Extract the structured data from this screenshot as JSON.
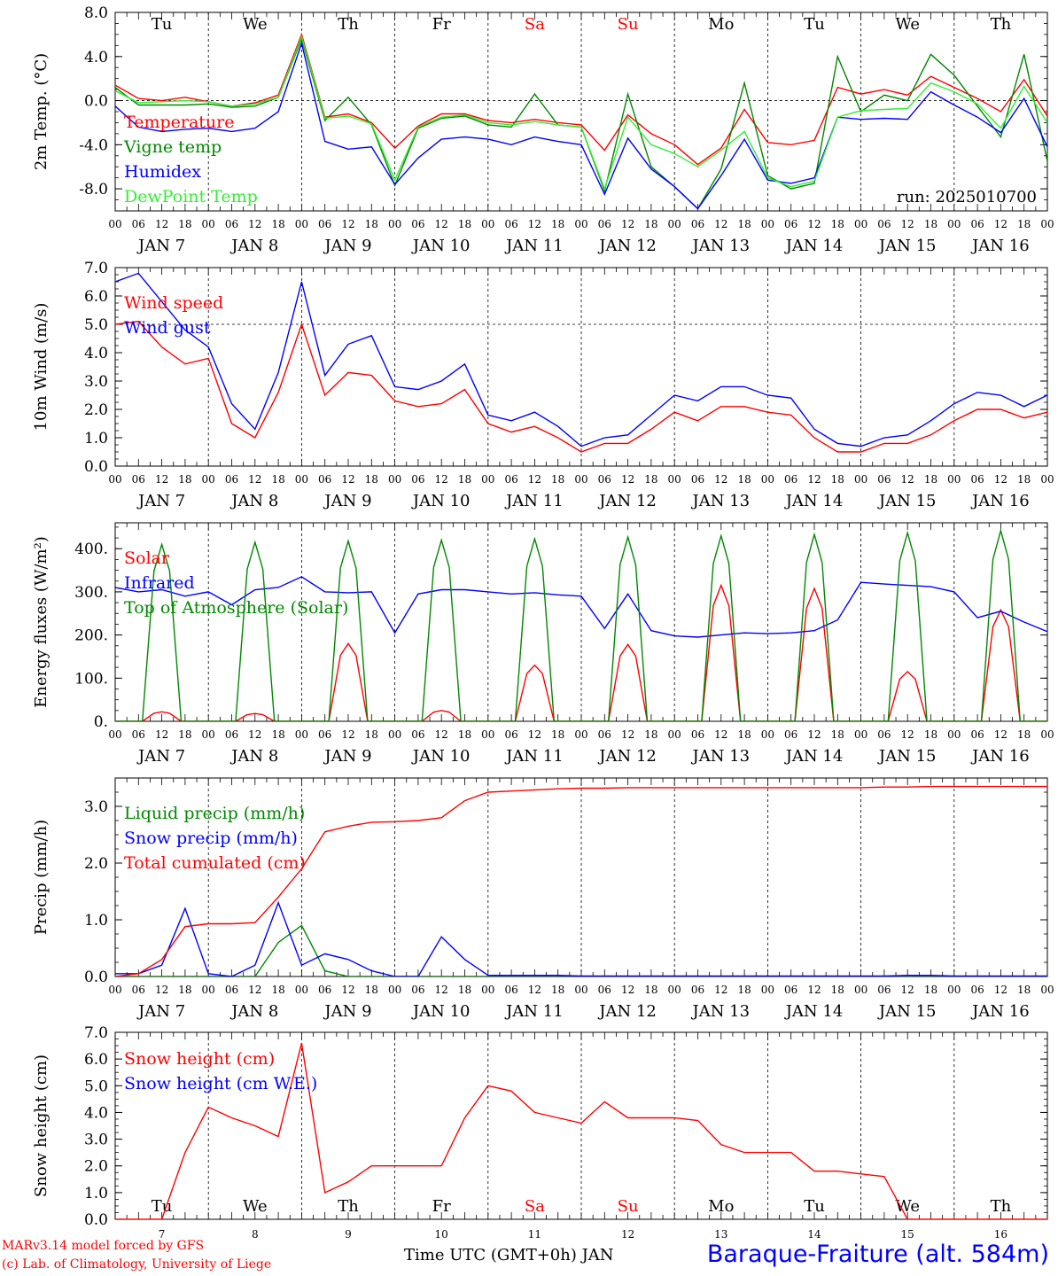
{
  "footer": {
    "credit_line1": "MARv3.14 model forced by GFS",
    "credit_line2": "(c) Lab. of Climatology, University of Liege",
    "xlabel": "Time UTC (GMT+0h) JAN",
    "station": "Baraque-Fraiture (alt. 584m)"
  },
  "colors": {
    "red": "#ff0000",
    "green": "#008800",
    "blue": "#0000ff",
    "light_green": "#33ee33"
  },
  "chart_data": [
    {
      "type": "line",
      "ylabel": "2m Temp. (°C)",
      "ylim": [
        -10,
        8
      ],
      "yticks": [
        "8.0",
        "4.0",
        "0.0",
        "-4.0",
        "-8.0"
      ],
      "ytick_values": [
        8,
        4,
        0,
        -4,
        -8
      ],
      "reference_line": 0,
      "annotation": "run: 2025010700",
      "day_names": [
        "Tu",
        "We",
        "Th",
        "Fr",
        "Sa",
        "Su",
        "Mo",
        "Tu",
        "We",
        "Th"
      ],
      "weekend_days": [
        4,
        5
      ],
      "x_hours": [
        0,
        6,
        12,
        18,
        24,
        30,
        36,
        42,
        48,
        54,
        60,
        66,
        72,
        78,
        84,
        90,
        96,
        102,
        108,
        114,
        120,
        126,
        132,
        138,
        144,
        150,
        156,
        162,
        168,
        174,
        180,
        186,
        192,
        198,
        204,
        210,
        216,
        222,
        228,
        234,
        240
      ],
      "series": [
        {
          "name": "Temperature",
          "color": "#ff0000",
          "values": [
            1.4,
            0.2,
            0.0,
            0.3,
            -0.1,
            -0.5,
            -0.2,
            0.5,
            6.0,
            -1.5,
            -1.2,
            -2.0,
            -4.3,
            -2.3,
            -1.2,
            -1.2,
            -1.8,
            -2.0,
            -1.7,
            -2.0,
            -2.2,
            -4.5,
            -1.3,
            -3.0,
            -4.0,
            -5.8,
            -4.3,
            -0.8,
            -3.8,
            -4.0,
            -3.6,
            1.2,
            0.6,
            1.0,
            0.5,
            2.2,
            1.2,
            0.2,
            -1.0,
            1.9,
            -1.4
          ]
        },
        {
          "name": "Vigne temp",
          "color": "#008800",
          "values": [
            1.2,
            -0.4,
            -0.4,
            -0.4,
            -0.3,
            -0.6,
            -0.5,
            0.3,
            5.6,
            -1.8,
            0.3,
            -2.2,
            -7.7,
            -2.5,
            -1.6,
            -1.4,
            -2.2,
            -2.4,
            0.6,
            -2.2,
            -2.4,
            -8.2,
            0.6,
            -6.0,
            -7.8,
            -9.8,
            -6.2,
            1.6,
            -6.8,
            -8.0,
            -7.5,
            4.0,
            -1.0,
            0.5,
            0.0,
            4.2,
            2.3,
            -0.5,
            -3.3,
            4.2,
            -5.5
          ]
        },
        {
          "name": "Humidex",
          "color": "#0000ff",
          "values": [
            -0.5,
            -2.4,
            -2.8,
            -2.6,
            -2.5,
            -2.8,
            -2.5,
            -1.0,
            5.2,
            -3.7,
            -4.4,
            -4.2,
            -7.6,
            -5.2,
            -3.5,
            -3.3,
            -3.5,
            -4.0,
            -3.3,
            -3.7,
            -4.0,
            -8.5,
            -3.4,
            -6.2,
            -7.8,
            -9.8,
            -6.8,
            -3.5,
            -7.2,
            -7.5,
            -7.0,
            -1.5,
            -1.7,
            -1.6,
            -1.7,
            0.8,
            -0.4,
            -1.5,
            -2.9,
            0.2,
            -4.2
          ]
        },
        {
          "name": "DewPoint Temp",
          "color": "#33ee33",
          "values": [
            0.9,
            -0.2,
            -0.1,
            0.0,
            -0.1,
            -0.5,
            -0.3,
            0.3,
            5.8,
            -1.6,
            -1.4,
            -2.1,
            -7.2,
            -2.4,
            -1.5,
            -1.3,
            -2.0,
            -2.2,
            -1.9,
            -2.2,
            -2.4,
            -8.0,
            -1.5,
            -4.0,
            -4.8,
            -6.0,
            -4.5,
            -2.8,
            -7.0,
            -7.8,
            -7.3,
            -1.5,
            -0.9,
            -0.8,
            -0.7,
            1.6,
            0.8,
            -0.3,
            -2.5,
            1.3,
            -2.0
          ]
        }
      ]
    },
    {
      "type": "line",
      "ylabel": "10m Wind (m/s)",
      "ylim": [
        0,
        7
      ],
      "yticks": [
        "7.0",
        "6.0",
        "5.0",
        "4.0",
        "3.0",
        "2.0",
        "1.0",
        "0.0"
      ],
      "ytick_values": [
        7,
        6,
        5,
        4,
        3,
        2,
        1,
        0
      ],
      "reference_line": 5,
      "x_hours": [
        0,
        6,
        12,
        18,
        24,
        30,
        36,
        42,
        48,
        54,
        60,
        66,
        72,
        78,
        84,
        90,
        96,
        102,
        108,
        114,
        120,
        126,
        132,
        138,
        144,
        150,
        156,
        162,
        168,
        174,
        180,
        186,
        192,
        198,
        204,
        210,
        216,
        222,
        228,
        234,
        240
      ],
      "series": [
        {
          "name": "Wind speed",
          "color": "#ff0000",
          "values": [
            5.0,
            5.1,
            4.2,
            3.6,
            3.8,
            1.5,
            1.0,
            2.6,
            5.0,
            2.5,
            3.3,
            3.2,
            2.3,
            2.1,
            2.2,
            2.7,
            1.5,
            1.2,
            1.4,
            1.0,
            0.5,
            0.8,
            0.8,
            1.3,
            1.9,
            1.6,
            2.1,
            2.1,
            1.9,
            1.8,
            1.0,
            0.5,
            0.5,
            0.8,
            0.8,
            1.1,
            1.6,
            2.0,
            2.0,
            1.7,
            1.9
          ]
        },
        {
          "name": "Wind gust",
          "color": "#0000ff",
          "values": [
            6.5,
            6.8,
            5.8,
            4.8,
            4.2,
            2.2,
            1.3,
            3.3,
            6.5,
            3.2,
            4.3,
            4.6,
            2.8,
            2.7,
            3.0,
            3.6,
            1.8,
            1.6,
            1.9,
            1.4,
            0.7,
            1.0,
            1.1,
            1.8,
            2.5,
            2.3,
            2.8,
            2.8,
            2.5,
            2.4,
            1.3,
            0.8,
            0.7,
            1.0,
            1.1,
            1.6,
            2.2,
            2.6,
            2.5,
            2.1,
            2.5
          ]
        }
      ]
    },
    {
      "type": "line",
      "ylabel": "Energy fluxes (W/m²)",
      "ylim": [
        0,
        460
      ],
      "yticks": [
        "400.",
        "300.",
        "200.",
        "100.",
        "0."
      ],
      "ytick_values": [
        400,
        300,
        200,
        100,
        0
      ],
      "toa_peaks": [
        410,
        415,
        418,
        420,
        423,
        427,
        430,
        433,
        437,
        442
      ],
      "solar_peaks": [
        22,
        18,
        180,
        25,
        130,
        178,
        315,
        308,
        115,
        258
      ],
      "x_hours": [
        0,
        6,
        12,
        18,
        24,
        30,
        36,
        42,
        48,
        54,
        60,
        66,
        72,
        78,
        84,
        90,
        96,
        102,
        108,
        114,
        120,
        126,
        132,
        138,
        144,
        150,
        156,
        162,
        168,
        174,
        180,
        186,
        192,
        198,
        204,
        210,
        216,
        222,
        228,
        234,
        240
      ],
      "series": [
        {
          "name": "Solar",
          "color": "#ff0000"
        },
        {
          "name": "Infrared",
          "color": "#0000ff",
          "values": [
            310,
            300,
            305,
            290,
            300,
            270,
            305,
            310,
            335,
            300,
            298,
            300,
            205,
            295,
            305,
            305,
            300,
            295,
            298,
            293,
            290,
            215,
            295,
            210,
            198,
            195,
            200,
            205,
            203,
            205,
            210,
            235,
            322,
            318,
            315,
            312,
            300,
            240,
            255,
            230,
            208
          ]
        },
        {
          "name": "Top of Atmosphere (Solar)",
          "color": "#008800"
        }
      ]
    },
    {
      "type": "line",
      "ylabel": "Precip (mm/h)",
      "ylim": [
        0,
        3.5
      ],
      "yticks": [
        "3.0",
        "2.0",
        "1.0",
        "0.0"
      ],
      "ytick_values": [
        3,
        2,
        1,
        0
      ],
      "x_hours": [
        0,
        6,
        12,
        18,
        24,
        30,
        36,
        42,
        48,
        54,
        60,
        66,
        72,
        78,
        84,
        90,
        96,
        102,
        108,
        114,
        120,
        126,
        132,
        138,
        144,
        150,
        156,
        162,
        168,
        174,
        180,
        186,
        192,
        198,
        204,
        210,
        216,
        222,
        228,
        234,
        240
      ],
      "series": [
        {
          "name": "Liquid precip (mm/h)",
          "color": "#008800",
          "values": [
            0,
            0,
            0,
            0,
            0,
            0,
            0,
            0.6,
            0.9,
            0.1,
            0,
            0,
            0,
            0,
            0,
            0,
            0,
            0,
            0,
            0,
            0,
            0,
            0,
            0,
            0,
            0,
            0,
            0,
            0,
            0,
            0,
            0,
            0,
            0,
            0,
            0,
            0,
            0,
            0,
            0,
            0
          ]
        },
        {
          "name": "Snow precip (mm/h)",
          "color": "#0000ff",
          "values": [
            0.05,
            0.05,
            0.2,
            1.2,
            0.05,
            0,
            0.2,
            1.3,
            0.2,
            0.4,
            0.3,
            0.1,
            0,
            0,
            0.7,
            0.3,
            0.02,
            0.02,
            0.02,
            0.02,
            0.01,
            0.01,
            0.01,
            0.01,
            0.01,
            0.01,
            0.01,
            0.01,
            0.01,
            0.01,
            0.01,
            0.01,
            0.01,
            0.01,
            0.02,
            0.02,
            0.01,
            0.01,
            0.01,
            0.01,
            0.01
          ]
        },
        {
          "name": "Total cumulated (cm)",
          "color": "#ff0000",
          "values": [
            0,
            0.05,
            0.3,
            0.88,
            0.93,
            0.93,
            0.95,
            1.4,
            1.9,
            2.55,
            2.65,
            2.72,
            2.73,
            2.75,
            2.8,
            3.1,
            3.25,
            3.27,
            3.29,
            3.31,
            3.32,
            3.32,
            3.33,
            3.33,
            3.33,
            3.33,
            3.33,
            3.33,
            3.33,
            3.33,
            3.33,
            3.33,
            3.33,
            3.34,
            3.34,
            3.35,
            3.35,
            3.35,
            3.35,
            3.35,
            3.35
          ]
        }
      ]
    },
    {
      "type": "line",
      "ylabel": "Snow height (cm)",
      "ylim": [
        0,
        7
      ],
      "yticks": [
        "7.0",
        "6.0",
        "5.0",
        "4.0",
        "3.0",
        "2.0",
        "1.0",
        "0.0"
      ],
      "ytick_values": [
        7,
        6,
        5,
        4,
        3,
        2,
        1,
        0
      ],
      "day_names": [
        "Tu",
        "We",
        "Th",
        "Fr",
        "Sa",
        "Su",
        "Mo",
        "Tu",
        "We",
        "Th"
      ],
      "weekend_days": [
        4,
        5
      ],
      "day_numbers": [
        "7",
        "8",
        "9",
        "10",
        "11",
        "12",
        "13",
        "14",
        "15",
        "16"
      ],
      "x_hours": [
        0,
        6,
        12,
        18,
        24,
        30,
        36,
        42,
        48,
        54,
        60,
        66,
        72,
        78,
        84,
        90,
        96,
        102,
        108,
        114,
        120,
        126,
        132,
        138,
        144,
        150,
        156,
        162,
        168,
        174,
        180,
        186,
        192,
        198,
        204,
        210,
        216,
        222,
        228,
        234,
        240
      ],
      "series": [
        {
          "name": "Snow height (cm)",
          "color": "#ff0000",
          "values": [
            0,
            0,
            0,
            2.5,
            4.2,
            3.8,
            3.5,
            3.1,
            6.6,
            1.0,
            1.4,
            2.0,
            2.0,
            2.0,
            2.0,
            3.8,
            5.0,
            4.8,
            4.0,
            3.8,
            3.6,
            4.4,
            3.8,
            3.8,
            3.8,
            3.7,
            2.8,
            2.5,
            2.5,
            2.5,
            1.8,
            1.8,
            1.7,
            1.6,
            0,
            0,
            0,
            0,
            0,
            0,
            0
          ]
        },
        {
          "name": "Snow height (cm W.E.)",
          "color": "#0000ff"
        }
      ]
    }
  ],
  "date_axis": {
    "hour_ticks": [
      "00",
      "06",
      "12",
      "18"
    ],
    "final_tick": "00",
    "day_labels": [
      "JAN  7",
      "JAN  8",
      "JAN  9",
      "JAN 10",
      "JAN 11",
      "JAN 12",
      "JAN 13",
      "JAN 14",
      "JAN 15",
      "JAN 16"
    ]
  }
}
